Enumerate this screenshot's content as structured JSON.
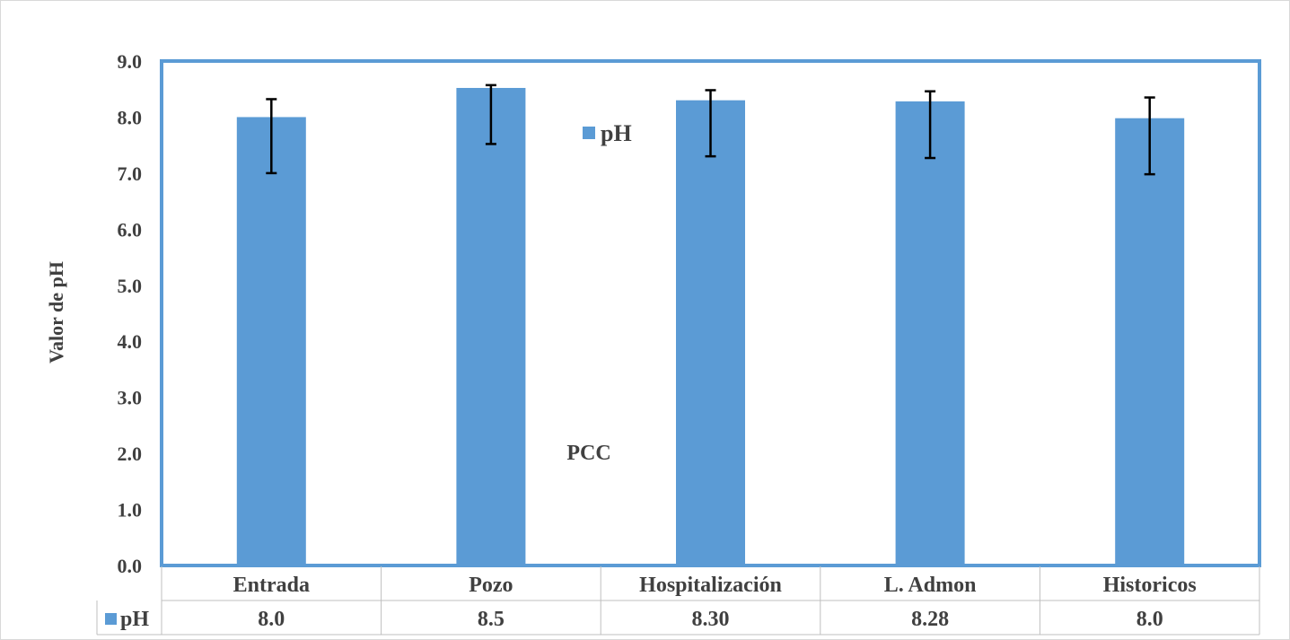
{
  "chart_data": {
    "type": "bar",
    "title": "",
    "ylabel": "Valor de pH",
    "xlabel": "",
    "ylim": [
      0,
      9
    ],
    "ytick_step": 1,
    "y_tick_labels": [
      "0.0",
      "1.0",
      "2.0",
      "3.0",
      "4.0",
      "5.0",
      "6.0",
      "7.0",
      "8.0",
      "9.0"
    ],
    "categories": [
      "Entrada",
      "Pozo",
      "Hospitalización",
      "L. Admon",
      "Historicos"
    ],
    "series": [
      {
        "name": "pH",
        "color": "#5b9bd5",
        "values": [
          8.0,
          8.52,
          8.3,
          8.28,
          7.98
        ],
        "error_low": [
          7.0,
          7.52,
          7.3,
          7.27,
          6.98
        ],
        "error_high": [
          8.32,
          8.57,
          8.48,
          8.46,
          8.35
        ]
      }
    ],
    "table_values": [
      "8.0",
      "8.5",
      "8.30",
      "8.28",
      "8.0"
    ],
    "annotation": "PCC",
    "legend": {
      "label": "pH",
      "placement": "top-center-inside"
    },
    "grid": false
  }
}
